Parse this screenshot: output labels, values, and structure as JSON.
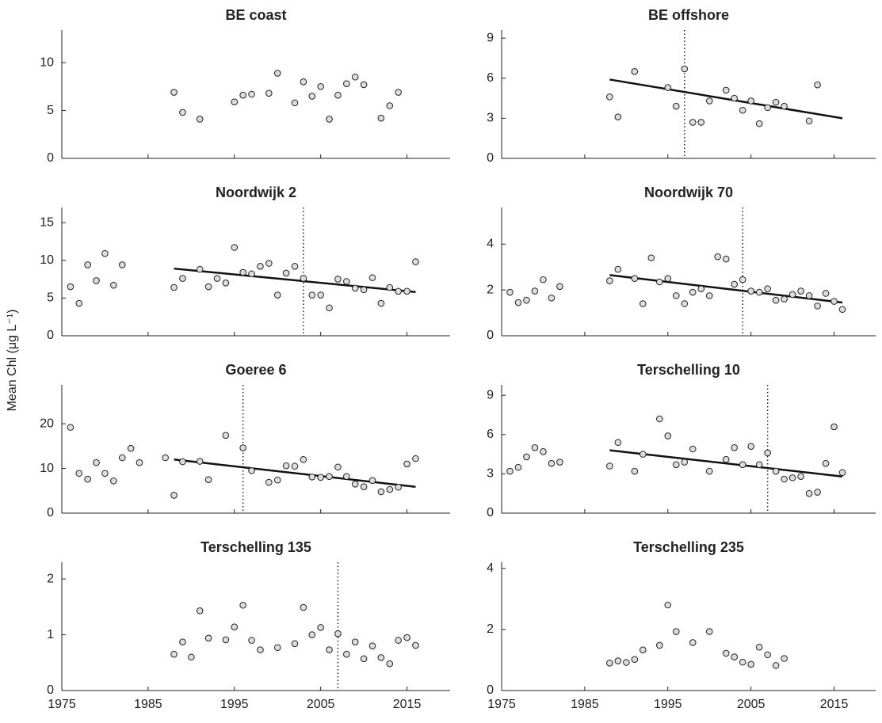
{
  "y_label": "Mean Chl (μg L⁻¹)",
  "chart_data": [
    {
      "type": "scatter",
      "title": "BE coast",
      "xlim": [
        1975,
        2020
      ],
      "ylim": [
        0,
        13.4
      ],
      "xticks": [
        1975,
        1985,
        1995,
        2005,
        2015
      ],
      "yticks": [
        0,
        5,
        10
      ],
      "x": [
        1988,
        1989,
        1991,
        1995,
        1996,
        1997,
        1999,
        2000,
        2002,
        2003,
        2004,
        2005,
        2006,
        2007,
        2008,
        2009,
        2010,
        2012,
        2013,
        2014
      ],
      "values": [
        6.9,
        4.8,
        4.1,
        5.9,
        6.6,
        6.7,
        6.8,
        8.9,
        5.8,
        8.0,
        6.5,
        7.5,
        4.1,
        6.6,
        7.8,
        8.5,
        7.7,
        4.2,
        5.5,
        6.9
      ]
    },
    {
      "type": "scatter",
      "title": "BE offshore",
      "xlim": [
        1975,
        2020
      ],
      "ylim": [
        0,
        9.6
      ],
      "xticks": [
        1975,
        1985,
        1995,
        2005,
        2015
      ],
      "yticks": [
        0,
        3,
        6,
        9
      ],
      "x": [
        1988,
        1989,
        1991,
        1995,
        1996,
        1997,
        1998,
        1999,
        2000,
        2002,
        2003,
        2004,
        2005,
        2006,
        2007,
        2008,
        2009,
        2012,
        2013
      ],
      "values": [
        4.6,
        3.1,
        6.5,
        5.3,
        3.9,
        6.7,
        2.7,
        2.7,
        4.3,
        5.1,
        4.5,
        3.6,
        4.3,
        2.6,
        3.8,
        4.2,
        3.9,
        2.8,
        5.5
      ],
      "trend": {
        "x": [
          1988,
          2016
        ],
        "y": [
          5.9,
          3.0
        ]
      },
      "breakpoint": 1997
    },
    {
      "type": "scatter",
      "title": "Noordwijk 2",
      "xlim": [
        1975,
        2020
      ],
      "ylim": [
        0,
        17
      ],
      "xticks": [
        1975,
        1985,
        1995,
        2005,
        2015
      ],
      "yticks": [
        0,
        5,
        10,
        15
      ],
      "x": [
        1976,
        1977,
        1978,
        1979,
        1980,
        1981,
        1982,
        1988,
        1989,
        1991,
        1992,
        1993,
        1994,
        1995,
        1996,
        1997,
        1998,
        1999,
        2000,
        2001,
        2002,
        2003,
        2004,
        2005,
        2006,
        2007,
        2008,
        2009,
        2010,
        2011,
        2012,
        2013,
        2014,
        2015,
        2016
      ],
      "values": [
        6.5,
        4.3,
        9.4,
        7.3,
        10.9,
        6.7,
        9.4,
        6.4,
        7.6,
        8.8,
        6.5,
        7.6,
        7.0,
        11.7,
        8.4,
        8.2,
        9.2,
        9.6,
        5.4,
        8.3,
        9.2,
        7.6,
        5.4,
        5.4,
        3.7,
        7.5,
        7.2,
        6.3,
        6.1,
        7.7,
        4.3,
        6.4,
        5.9,
        5.9,
        9.8
      ],
      "trend": {
        "x": [
          1988,
          2016
        ],
        "y": [
          8.9,
          5.8
        ]
      },
      "breakpoint": 2003
    },
    {
      "type": "scatter",
      "title": "Noordwijk 70",
      "xlim": [
        1975,
        2020
      ],
      "ylim": [
        0,
        5.6
      ],
      "xticks": [
        1975,
        1985,
        1995,
        2005,
        2015
      ],
      "yticks": [
        0,
        2,
        4
      ],
      "x": [
        1976,
        1977,
        1978,
        1979,
        1980,
        1981,
        1982,
        1988,
        1989,
        1991,
        1992,
        1993,
        1994,
        1995,
        1996,
        1997,
        1998,
        1999,
        2000,
        2001,
        2002,
        2003,
        2004,
        2005,
        2006,
        2007,
        2008,
        2009,
        2010,
        2011,
        2012,
        2013,
        2014,
        2015,
        2016
      ],
      "values": [
        1.9,
        1.45,
        1.55,
        1.95,
        2.45,
        1.65,
        2.15,
        2.4,
        2.9,
        2.5,
        1.4,
        3.4,
        2.35,
        2.5,
        1.75,
        1.4,
        1.9,
        2.05,
        1.75,
        3.45,
        3.35,
        2.25,
        2.45,
        1.95,
        1.9,
        2.05,
        1.55,
        1.6,
        1.8,
        1.95,
        1.75,
        1.3,
        1.85,
        1.5,
        1.15
      ],
      "trend": {
        "x": [
          1988,
          2016
        ],
        "y": [
          2.65,
          1.45
        ]
      },
      "breakpoint": 2004
    },
    {
      "type": "scatter",
      "title": "Goeree 6",
      "xlim": [
        1975,
        2020
      ],
      "ylim": [
        0,
        28.7
      ],
      "xticks": [
        1975,
        1985,
        1995,
        2005,
        2015
      ],
      "yticks": [
        0,
        10,
        20
      ],
      "x": [
        1976,
        1977,
        1978,
        1979,
        1980,
        1981,
        1982,
        1983,
        1984,
        1987,
        1988,
        1989,
        1991,
        1992,
        1994,
        1996,
        1997,
        1999,
        2000,
        2001,
        2002,
        2003,
        2004,
        2005,
        2006,
        2007,
        2008,
        2009,
        2010,
        2011,
        2012,
        2013,
        2014,
        2015,
        2016
      ],
      "values": [
        19.2,
        8.9,
        7.6,
        11.3,
        8.9,
        7.2,
        12.4,
        14.5,
        11.3,
        12.4,
        4.0,
        11.5,
        11.6,
        7.5,
        17.4,
        14.6,
        9.5,
        6.9,
        7.4,
        10.6,
        10.5,
        12.0,
        8.1,
        8.0,
        8.2,
        10.3,
        8.2,
        6.5,
        5.9,
        7.3,
        4.8,
        5.3,
        5.8,
        11.0,
        12.2
      ],
      "trend": {
        "x": [
          1988,
          2016
        ],
        "y": [
          12.0,
          5.9
        ]
      },
      "breakpoint": 1996
    },
    {
      "type": "scatter",
      "title": "Terschelling 10",
      "xlim": [
        1975,
        2020
      ],
      "ylim": [
        0,
        9.8
      ],
      "xticks": [
        1975,
        1985,
        1995,
        2005,
        2015
      ],
      "yticks": [
        0,
        3,
        6,
        9
      ],
      "x": [
        1976,
        1977,
        1978,
        1979,
        1980,
        1981,
        1982,
        1988,
        1989,
        1991,
        1992,
        1994,
        1995,
        1996,
        1997,
        1998,
        2000,
        2002,
        2003,
        2004,
        2005,
        2006,
        2007,
        2008,
        2009,
        2010,
        2011,
        2012,
        2013,
        2014,
        2015,
        2016
      ],
      "values": [
        3.2,
        3.5,
        4.3,
        5.0,
        4.7,
        3.8,
        3.9,
        3.6,
        5.4,
        3.2,
        4.5,
        7.2,
        5.9,
        3.7,
        3.9,
        4.9,
        3.2,
        4.1,
        5.0,
        3.7,
        5.1,
        3.7,
        4.6,
        3.2,
        2.6,
        2.7,
        2.8,
        1.5,
        1.6,
        3.8,
        6.6,
        3.1
      ],
      "trend": {
        "x": [
          1988,
          2016
        ],
        "y": [
          4.8,
          2.8
        ]
      },
      "breakpoint": 2007
    },
    {
      "type": "scatter",
      "title": "Terschelling 135",
      "xlim": [
        1975,
        2020
      ],
      "ylim": [
        0,
        2.3
      ],
      "xticks": [
        1975,
        1985,
        1995,
        2005,
        2015
      ],
      "yticks": [
        0,
        1,
        2
      ],
      "x": [
        1988,
        1989,
        1990,
        1991,
        1992,
        1994,
        1995,
        1996,
        1997,
        1998,
        2000,
        2002,
        2003,
        2004,
        2005,
        2006,
        2007,
        2008,
        2009,
        2010,
        2011,
        2012,
        2013,
        2014,
        2015,
        2016
      ],
      "values": [
        0.65,
        0.87,
        0.6,
        1.43,
        0.94,
        0.91,
        1.14,
        1.53,
        0.9,
        0.73,
        0.77,
        0.84,
        1.49,
        1.0,
        1.13,
        0.73,
        1.02,
        0.65,
        0.87,
        0.57,
        0.8,
        0.59,
        0.48,
        0.9,
        0.95,
        0.81
      ],
      "breakpoint": 2007
    },
    {
      "type": "scatter",
      "title": "Terschelling 235",
      "xlim": [
        1975,
        2020
      ],
      "ylim": [
        0,
        4.2
      ],
      "xticks": [
        1975,
        1985,
        1995,
        2005,
        2015
      ],
      "yticks": [
        0,
        2,
        4
      ],
      "x": [
        1988,
        1989,
        1990,
        1991,
        1992,
        1994,
        1995,
        1996,
        1998,
        2000,
        2002,
        2003,
        2004,
        2005,
        2006,
        2007,
        2008,
        2009
      ],
      "values": [
        0.9,
        0.97,
        0.92,
        1.02,
        1.33,
        1.48,
        2.8,
        1.93,
        1.57,
        1.93,
        1.22,
        1.1,
        0.93,
        0.86,
        1.42,
        1.17,
        0.82,
        1.05
      ]
    }
  ]
}
